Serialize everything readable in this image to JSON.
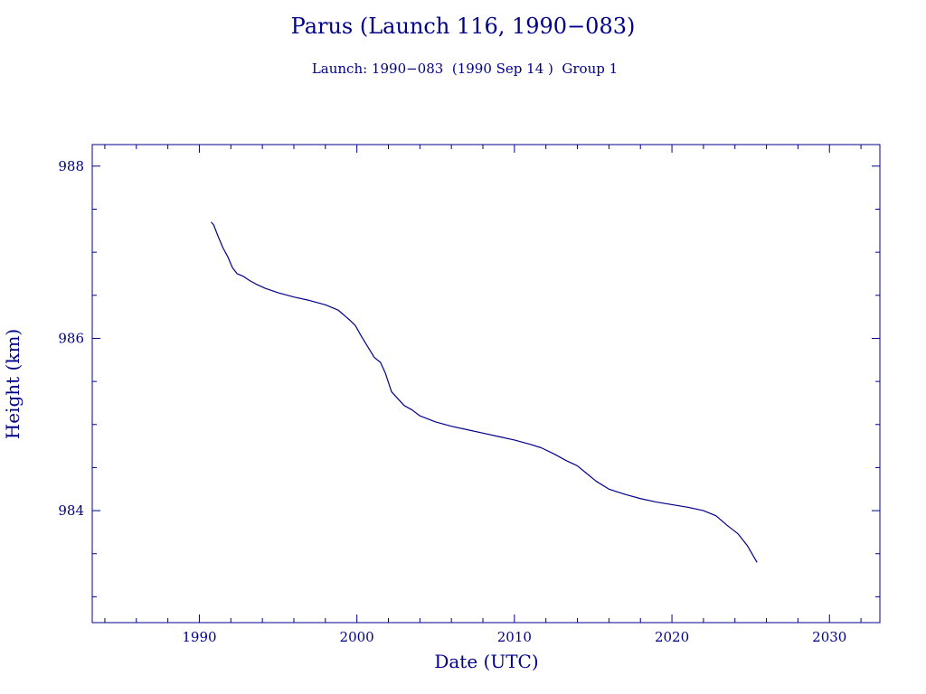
{
  "chart_data": {
    "type": "line",
    "title": "Parus (Launch 116, 1990−083)",
    "subtitle": "Launch: 1990−083  (1990 Sep 14 )  Group 1",
    "xlabel": "Date (UTC)",
    "ylabel": "Height (km)",
    "xlim": [
      1983.2,
      2033.2
    ],
    "ylim": [
      982.7,
      988.25
    ],
    "x_ticks": [
      1990,
      2000,
      2010,
      2020,
      2030
    ],
    "x_tick_labels": [
      "1990",
      "2000",
      "2010",
      "2020",
      "2030"
    ],
    "y_ticks": [
      984,
      986,
      988
    ],
    "y_tick_labels": [
      "984",
      "986",
      "988"
    ],
    "grid": false,
    "color": "#00008b",
    "series": [
      {
        "x": [
          1990.75,
          1990.9,
          1991.2,
          1991.5,
          1991.8,
          1992.1,
          1992.4,
          1992.8,
          1993.2,
          1993.6,
          1994.2,
          1995.0,
          1996.0,
          1997.0,
          1998.0,
          1998.8,
          1999.5,
          1999.9,
          2000.3,
          2000.7,
          2001.1,
          2001.5,
          2001.8,
          2002.2,
          2002.6,
          2003.0,
          2003.5,
          2004.0,
          2005.0,
          2006.0,
          2007.0,
          2008.0,
          2009.0,
          2010.0,
          2011.0,
          2011.7,
          2012.5,
          2013.3,
          2014.0,
          2014.6,
          2015.2,
          2016.0,
          2017.0,
          2018.0,
          2019.0,
          2020.0,
          2021.0,
          2022.0,
          2022.8,
          2023.5,
          2024.2,
          2024.8,
          2025.4
        ],
        "y": [
          987.35,
          987.32,
          987.18,
          987.05,
          986.95,
          986.82,
          986.75,
          986.72,
          986.67,
          986.63,
          986.58,
          986.53,
          986.48,
          986.44,
          986.39,
          986.33,
          986.22,
          986.15,
          986.02,
          985.9,
          985.78,
          985.72,
          985.6,
          985.38,
          985.3,
          985.22,
          985.17,
          985.1,
          985.03,
          984.98,
          984.94,
          984.9,
          984.86,
          984.82,
          984.77,
          984.73,
          984.66,
          984.58,
          984.52,
          984.43,
          984.34,
          984.25,
          984.19,
          984.14,
          984.1,
          984.07,
          984.04,
          984.0,
          983.94,
          983.83,
          983.73,
          983.59,
          983.4
        ]
      }
    ]
  }
}
